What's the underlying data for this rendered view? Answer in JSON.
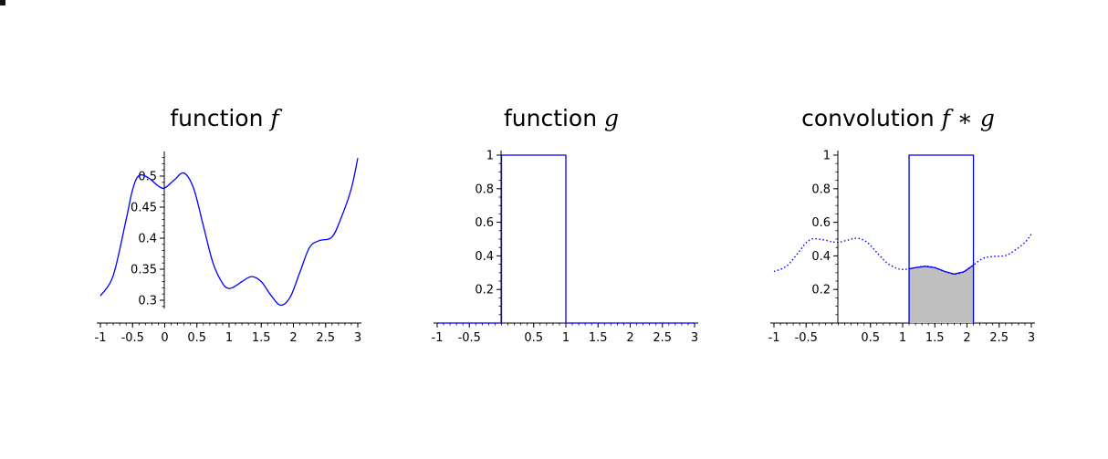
{
  "chart_data": [
    {
      "type": "line",
      "title": "function",
      "title_math": "f",
      "xlabel": "",
      "ylabel": "",
      "xlim": [
        -1,
        3
      ],
      "ylim": [
        0.29,
        0.53
      ],
      "x_ticks": [
        -1,
        -0.5,
        0,
        0.5,
        1,
        1.5,
        2,
        2.5,
        3
      ],
      "x_tick_labels": [
        "-1",
        "-0.5",
        "0",
        "0.5",
        "1",
        "1.5",
        "2",
        "2.5",
        "3"
      ],
      "y_ticks": [
        0.3,
        0.35,
        0.4,
        0.45,
        0.5
      ],
      "y_tick_labels": [
        "0.3",
        "0.35",
        "0.4",
        "0.45",
        "0.5"
      ],
      "color": "#0000ff",
      "series": [
        {
          "style": "solid",
          "x": [
            -1,
            -0.8,
            -0.6,
            -0.5,
            -0.4,
            -0.25,
            -0.1,
            0,
            0.15,
            0.3,
            0.45,
            0.6,
            0.75,
            0.9,
            1.0,
            1.1,
            1.2,
            1.35,
            1.5,
            1.65,
            1.8,
            1.95,
            2.1,
            2.25,
            2.4,
            2.6,
            2.75,
            2.9,
            3.0
          ],
          "y": [
            0.307,
            0.34,
            0.43,
            0.478,
            0.501,
            0.497,
            0.484,
            0.481,
            0.494,
            0.505,
            0.48,
            0.42,
            0.36,
            0.327,
            0.319,
            0.323,
            0.33,
            0.338,
            0.33,
            0.308,
            0.292,
            0.305,
            0.345,
            0.385,
            0.396,
            0.402,
            0.435,
            0.48,
            0.529
          ]
        }
      ]
    },
    {
      "type": "line",
      "title": "function",
      "title_math": "g",
      "xlabel": "",
      "ylabel": "",
      "xlim": [
        -1,
        3
      ],
      "ylim": [
        0,
        1
      ],
      "x_ticks": [
        -1,
        -0.5,
        0.5,
        1,
        1.5,
        2,
        2.5,
        3
      ],
      "x_tick_labels": [
        "-1",
        "-0.5",
        "0.5",
        "1",
        "1.5",
        "2",
        "2.5",
        "3"
      ],
      "y_ticks": [
        0.2,
        0.4,
        0.6,
        0.8,
        1
      ],
      "y_tick_labels": [
        "0.2",
        "0.4",
        "0.6",
        "0.8",
        "1"
      ],
      "color": "#0000ff",
      "series": [
        {
          "style": "solid",
          "x": [
            -1,
            0,
            0,
            1,
            1,
            3
          ],
          "y": [
            0,
            0,
            1,
            1,
            0,
            0
          ]
        }
      ]
    },
    {
      "type": "line",
      "title": "convolution",
      "title_math": "f ∗ g",
      "xlabel": "",
      "ylabel": "",
      "xlim": [
        -1,
        3
      ],
      "ylim": [
        0,
        1
      ],
      "x_ticks": [
        -1,
        -0.5,
        0.5,
        1,
        1.5,
        2,
        2.5,
        3
      ],
      "x_tick_labels": [
        "-1",
        "-0.5",
        "0.5",
        "1",
        "1.5",
        "2",
        "2.5",
        "3"
      ],
      "y_ticks": [
        0.2,
        0.4,
        0.6,
        0.8,
        1
      ],
      "y_tick_labels": [
        "0.2",
        "0.4",
        "0.6",
        "0.8",
        "1"
      ],
      "color": "#0000ff",
      "shade_color": "#bfbfbf",
      "window": {
        "x0": 1.1,
        "x1": 2.1,
        "height": 1
      },
      "series": [
        {
          "style": "dotted",
          "x": [
            -1,
            -0.8,
            -0.6,
            -0.5,
            -0.4,
            -0.25,
            -0.1,
            0,
            0.15,
            0.3,
            0.45,
            0.6,
            0.75,
            0.9,
            1.0,
            1.1,
            1.2,
            1.35,
            1.5,
            1.65,
            1.8,
            1.95,
            2.1,
            2.25,
            2.4,
            2.6,
            2.75,
            2.9,
            3.0
          ],
          "y": [
            0.307,
            0.34,
            0.43,
            0.478,
            0.501,
            0.497,
            0.484,
            0.481,
            0.494,
            0.505,
            0.48,
            0.42,
            0.36,
            0.327,
            0.319,
            0.323,
            0.33,
            0.338,
            0.33,
            0.308,
            0.292,
            0.305,
            0.345,
            0.385,
            0.396,
            0.402,
            0.435,
            0.48,
            0.529
          ]
        }
      ]
    }
  ]
}
